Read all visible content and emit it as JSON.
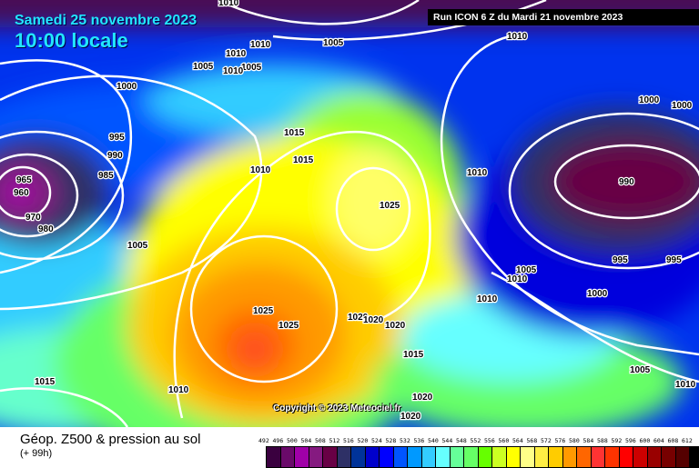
{
  "header": {
    "date": "Samedi 25 novembre 2023",
    "time": "10:00 locale",
    "run": "Run ICON 6 Z du Mardi 21 novembre 2023"
  },
  "map": {
    "copyright": "Copyright © 2023 Meteociel.fr",
    "isobar_labels": [
      "1010",
      "1010",
      "1005",
      "1010",
      "1010",
      "1005",
      "1005",
      "1010",
      "1000",
      "995",
      "990",
      "985",
      "965",
      "960",
      "970",
      "980",
      "1015",
      "1015",
      "1010",
      "1005",
      "1025",
      "1010",
      "990",
      "1000",
      "1000",
      "995",
      "995",
      "1005",
      "1010",
      "1010",
      "1000",
      "1025",
      "1025",
      "1020",
      "1020",
      "1020",
      "1015",
      "1005",
      "1010",
      "1020",
      "1020",
      "1015",
      "1010"
    ]
  },
  "footer": {
    "title": "Géop. Z500 & pression au sol",
    "subtitle": "(+ 99h)"
  },
  "legend": {
    "labels": [
      "492",
      "496",
      "500",
      "504",
      "508",
      "512",
      "516",
      "520",
      "524",
      "528",
      "532",
      "536",
      "540",
      "544",
      "548",
      "552",
      "556",
      "560",
      "564",
      "568",
      "572",
      "576",
      "580",
      "584",
      "588",
      "592",
      "596",
      "600",
      "604",
      "608",
      "612"
    ],
    "colors": [
      "#3a003f",
      "#6a0a6a",
      "#a000a8",
      "#851a80",
      "#680045",
      "#2e3066",
      "#003399",
      "#0000cc",
      "#0000ff",
      "#0055ff",
      "#0099ff",
      "#33ccff",
      "#66ffff",
      "#66ff99",
      "#66ff66",
      "#66ff00",
      "#ccff22",
      "#ffff00",
      "#ffff88",
      "#ffee44",
      "#ffcc00",
      "#ff9900",
      "#ff6600",
      "#ff3333",
      "#ff3300",
      "#ff0000",
      "#cc0000",
      "#990000",
      "#770000",
      "#550000",
      "#000000"
    ]
  }
}
